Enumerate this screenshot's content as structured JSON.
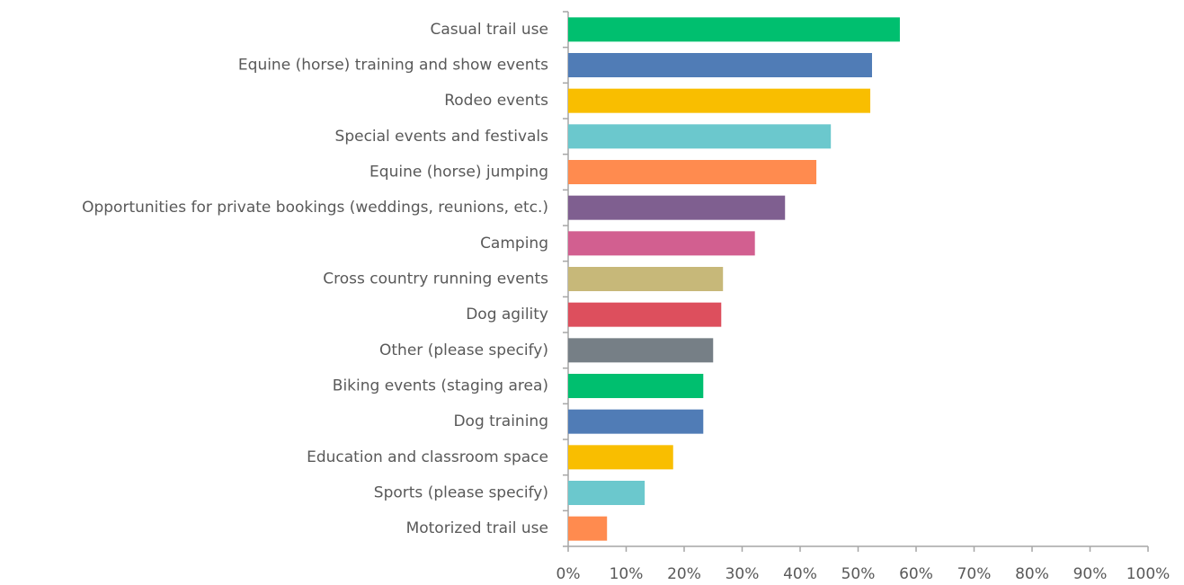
{
  "chart_data": {
    "type": "bar",
    "orientation": "horizontal",
    "categories": [
      "Casual trail use",
      "Equine (horse) training and show events",
      "Rodeo events",
      "Special events and festivals",
      "Equine (horse) jumping",
      "Opportunities for private bookings (weddings, reunions, etc.)",
      "Camping",
      "Cross country running events",
      "Dog agility",
      "Other (please specify)",
      "Biking events (staging area)",
      "Dog training",
      "Education and classroom space",
      "Sports (please specify)",
      "Motorized trail use"
    ],
    "values": [
      57.2,
      52.4,
      52.1,
      45.3,
      42.8,
      37.4,
      32.2,
      26.7,
      26.4,
      25.0,
      23.3,
      23.3,
      18.1,
      13.2,
      6.7
    ],
    "colors": [
      "#00bf6f",
      "#507cb6",
      "#f9be00",
      "#6bc8cd",
      "#ff8b4f",
      "#7f5f90",
      "#d25f90",
      "#c7b879",
      "#dd4f5d",
      "#767f86",
      "#00bf6f",
      "#507cb6",
      "#f9be00",
      "#6bc8cd",
      "#ff8b4f"
    ],
    "xlim": [
      0,
      100
    ],
    "xticks": [
      {
        "value": 0,
        "label": "0%"
      },
      {
        "value": 10,
        "label": "10%"
      },
      {
        "value": 20,
        "label": "20%"
      },
      {
        "value": 30,
        "label": "30%"
      },
      {
        "value": 40,
        "label": "40%"
      },
      {
        "value": 50,
        "label": "50%"
      },
      {
        "value": 60,
        "label": "60%"
      },
      {
        "value": 70,
        "label": "70%"
      },
      {
        "value": 80,
        "label": "80%"
      },
      {
        "value": 90,
        "label": "90%"
      },
      {
        "value": 100,
        "label": "100%"
      }
    ],
    "grid": false
  }
}
